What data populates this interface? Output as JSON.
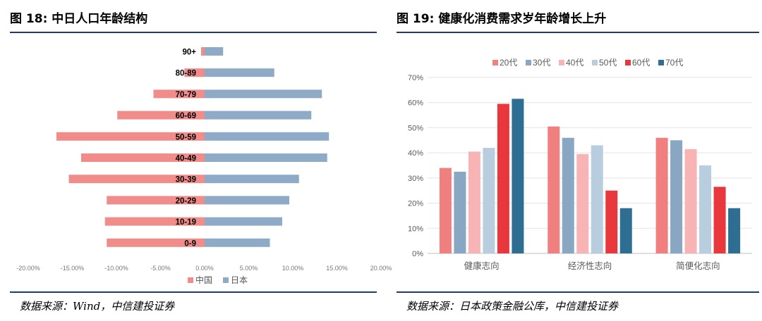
{
  "figures": [
    {
      "title": "图 18: 中日人口年龄结构",
      "source": "数据来源：Wind，中信建投证券"
    },
    {
      "title": "图 19: 健康化消费需求岁年龄增长上升",
      "source": "数据来源：日本政策金融公库，中信建投证券"
    }
  ],
  "chart_data": [
    {
      "type": "bar",
      "orientation": "horizontal",
      "categories": [
        "90+",
        "80-89",
        "70-79",
        "60-69",
        "50-59",
        "40-49",
        "30-39",
        "20-29",
        "10-19",
        "0-9"
      ],
      "series": [
        {
          "name": "中国",
          "color": "#f08c8a",
          "values": [
            -0.4,
            -2.3,
            -5.8,
            -9.9,
            -16.8,
            -14.0,
            -15.4,
            -11.1,
            -11.3,
            -11.1
          ]
        },
        {
          "name": "日本",
          "color": "#8eaac6",
          "values": [
            2.1,
            7.9,
            13.3,
            12.1,
            14.1,
            13.9,
            10.7,
            9.6,
            8.8,
            7.4
          ]
        }
      ],
      "xaxis_ticks": [
        "-20.00%",
        "-15.00%",
        "-10.00%",
        "-5.00%",
        "0.00%",
        "5.00%",
        "10.00%",
        "15.00%",
        "20.00%"
      ],
      "xlim": [
        -20,
        20
      ],
      "unit": "%",
      "legend_position": "bottom",
      "grid": false
    },
    {
      "type": "bar",
      "categories": [
        "健康志向",
        "经济性志向",
        "简便化志向"
      ],
      "series": [
        {
          "name": "20代",
          "color": "#f07f7f",
          "values": [
            34,
            50.5,
            46
          ]
        },
        {
          "name": "30代",
          "color": "#89a7c2",
          "values": [
            32.5,
            46,
            45
          ]
        },
        {
          "name": "40代",
          "color": "#f8b4b4",
          "values": [
            40.5,
            39.5,
            41.5
          ]
        },
        {
          "name": "50代",
          "color": "#b8cddd",
          "values": [
            42,
            43,
            35
          ]
        },
        {
          "name": "60代",
          "color": "#e8383d",
          "values": [
            59.5,
            25,
            26.5
          ]
        },
        {
          "name": "70代",
          "color": "#2f6e93",
          "values": [
            61.5,
            18,
            18
          ]
        }
      ],
      "yaxis_ticks": [
        "0%",
        "10%",
        "20%",
        "30%",
        "40%",
        "50%",
        "60%",
        "70%"
      ],
      "ylim": [
        0,
        70
      ],
      "legend_position": "top",
      "grid": true
    }
  ]
}
